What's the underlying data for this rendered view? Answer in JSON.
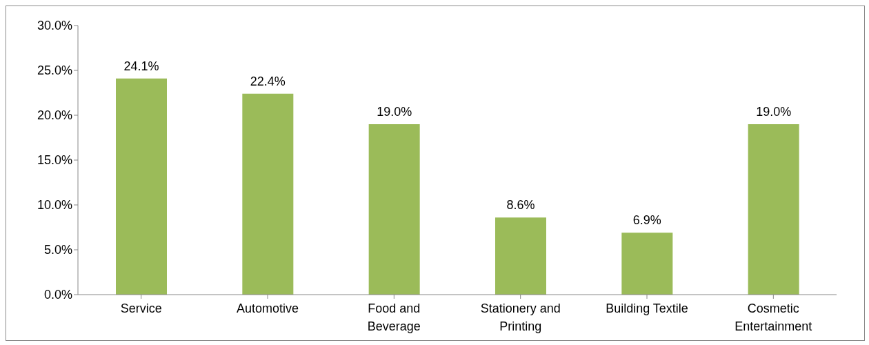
{
  "chart_data": {
    "type": "bar",
    "categories": [
      "Service",
      "Automotive",
      "Food and Beverage",
      "Stationery and Printing",
      "Building Textile",
      "Cosmetic Entertainment"
    ],
    "values": [
      24.1,
      22.4,
      19.0,
      8.6,
      6.9,
      19.0
    ],
    "value_labels": [
      "24.1%",
      "22.4%",
      "19.0%",
      "8.6%",
      "6.9%",
      "19.0%"
    ],
    "color": "#9bbb59",
    "ylim": [
      0,
      30
    ],
    "yticks": [
      {
        "value": 0,
        "label": "0.0%"
      },
      {
        "value": 5,
        "label": "5.0%"
      },
      {
        "value": 10,
        "label": "10.0%"
      },
      {
        "value": 15,
        "label": "15.0%"
      },
      {
        "value": 20,
        "label": "20.0%"
      },
      {
        "value": 25,
        "label": "25.0%"
      },
      {
        "value": 30,
        "label": "30.0%"
      }
    ],
    "grid": false
  }
}
